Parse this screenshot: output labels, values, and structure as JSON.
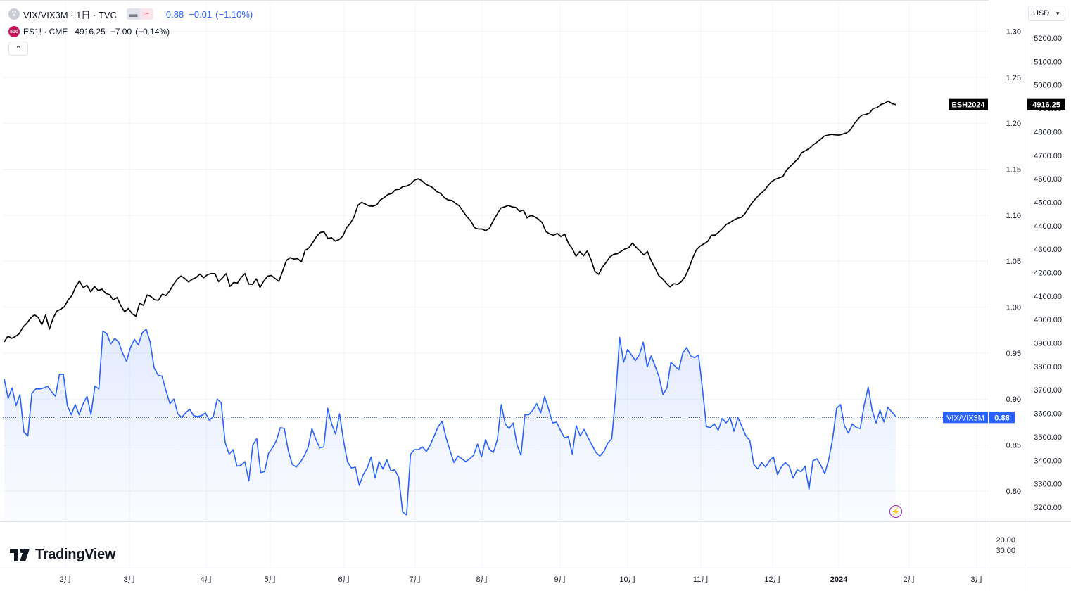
{
  "legend": {
    "main": {
      "icon": "V",
      "title": "VIX/VIX3M · 1日 · TVC",
      "last": "0.88",
      "change": "−0.01",
      "change_pct": "(−1.10%)",
      "pill_icons": [
        "minus-icon",
        "approx-icon"
      ],
      "color": "#2962ff"
    },
    "overlay": {
      "icon": "500",
      "title": "ES1! · CME",
      "last": "4916.25",
      "change": "−7.00",
      "change_pct": "(−0.14%)",
      "icon_color": "#c2185b"
    },
    "collapse_icon": "chevron-up-icon"
  },
  "currency": {
    "label": "USD",
    "icon": "chevron-down-icon"
  },
  "brand": {
    "name": "TradingView"
  },
  "badges": {
    "es_name": "ESH2024",
    "es_value": "4916.25",
    "vix_name": "VIX/VIX3M",
    "vix_value": "0.88"
  },
  "colors": {
    "vix_line": "#2962ff",
    "es_line": "#000000",
    "grid": "#f0f3fa"
  },
  "chart_data": {
    "type": "line",
    "x_ticks": [
      "2月",
      "3月",
      "4月",
      "5月",
      "6月",
      "7月",
      "8月",
      "9月",
      "10月",
      "11月",
      "12月",
      "2024",
      "2月",
      "3月"
    ],
    "series": [
      {
        "name": "VIX/VIX3M",
        "style": "area",
        "axis": "left-scale",
        "last": 0.88,
        "ylim": [
          0.767,
          1.331
        ],
        "ticks": [
          "1.30",
          "1.25",
          "1.20",
          "1.15",
          "1.10",
          "1.05",
          "1.00",
          "0.95",
          "0.90",
          "0.85",
          "0.80"
        ],
        "values": [
          0.922,
          0.901,
          0.912,
          0.893,
          0.905,
          0.864,
          0.86,
          0.906,
          0.911,
          0.911,
          0.912,
          0.914,
          0.908,
          0.903,
          0.927,
          0.927,
          0.893,
          0.883,
          0.894,
          0.883,
          0.895,
          0.903,
          0.883,
          0.914,
          0.911,
          0.974,
          0.971,
          0.96,
          0.966,
          0.962,
          0.95,
          0.941,
          0.956,
          0.965,
          0.959,
          0.972,
          0.976,
          0.962,
          0.934,
          0.926,
          0.925,
          0.909,
          0.895,
          0.9,
          0.884,
          0.88,
          0.885,
          0.889,
          0.882,
          0.881,
          0.882,
          0.885,
          0.877,
          0.881,
          0.9,
          0.896,
          0.853,
          0.84,
          0.845,
          0.827,
          0.828,
          0.832,
          0.811,
          0.85,
          0.857,
          0.82,
          0.821,
          0.841,
          0.847,
          0.855,
          0.869,
          0.868,
          0.844,
          0.829,
          0.826,
          0.831,
          0.838,
          0.847,
          0.868,
          0.856,
          0.847,
          0.848,
          0.89,
          0.873,
          0.862,
          0.884,
          0.855,
          0.832,
          0.825,
          0.826,
          0.806,
          0.818,
          0.825,
          0.837,
          0.814,
          0.832,
          0.824,
          0.834,
          0.822,
          0.823,
          0.815,
          0.777,
          0.774,
          0.84,
          0.845,
          0.845,
          0.848,
          0.843,
          0.85,
          0.86,
          0.87,
          0.876,
          0.858,
          0.844,
          0.831,
          0.838,
          0.835,
          0.832,
          0.835,
          0.839,
          0.851,
          0.837,
          0.856,
          0.845,
          0.842,
          0.856,
          0.894,
          0.873,
          0.868,
          0.874,
          0.85,
          0.839,
          0.883,
          0.883,
          0.888,
          0.895,
          0.885,
          0.903,
          0.889,
          0.874,
          0.875,
          0.866,
          0.858,
          0.859,
          0.84,
          0.871,
          0.86,
          0.867,
          0.858,
          0.85,
          0.842,
          0.838,
          0.843,
          0.852,
          0.857,
          0.904,
          0.967,
          0.94,
          0.954,
          0.948,
          0.942,
          0.948,
          0.962,
          0.935,
          0.947,
          0.936,
          0.924,
          0.905,
          0.912,
          0.94,
          0.936,
          0.932,
          0.95,
          0.956,
          0.947,
          0.945,
          0.948,
          0.911,
          0.87,
          0.869,
          0.873,
          0.866,
          0.879,
          0.874,
          0.88,
          0.865,
          0.88,
          0.87,
          0.86,
          0.855,
          0.829,
          0.824,
          0.831,
          0.826,
          0.833,
          0.837,
          0.818,
          0.826,
          0.831,
          0.827,
          0.814,
          0.823,
          0.821,
          0.827,
          0.802,
          0.833,
          0.835,
          0.828,
          0.819,
          0.834,
          0.857,
          0.89,
          0.894,
          0.871,
          0.863,
          0.873,
          0.869,
          0.868,
          0.894,
          0.913,
          0.888,
          0.874,
          0.888,
          0.875,
          0.891,
          0.886,
          0.881
        ]
      },
      {
        "name": "ESH2024",
        "style": "line",
        "axis": "right-scale",
        "last": 4916.25,
        "ylim": [
          3140,
          5350
        ],
        "ticks": [
          "5200.00",
          "5100.00",
          "5000.00",
          "4900.00",
          "4800.00",
          "4700.00",
          "4600.00",
          "4500.00",
          "4400.00",
          "4300.00",
          "4200.00",
          "4100.00",
          "4000.00",
          "3900.00",
          "3800.00",
          "3700.00",
          "3600.00",
          "3500.00",
          "3400.00",
          "3300.00",
          "3200.00"
        ],
        "values": [
          3905,
          3929,
          3920,
          3928,
          3940,
          3968,
          3984,
          4006,
          4020,
          4010,
          3978,
          4019,
          3959,
          4006,
          4036,
          4044,
          4055,
          4084,
          4102,
          4140,
          4164,
          4136,
          4146,
          4118,
          4141,
          4124,
          4130,
          4112,
          4106,
          4084,
          4094,
          4059,
          4033,
          4047,
          4025,
          4014,
          4070,
          4060,
          4105,
          4098,
          4084,
          4082,
          4108,
          4102,
          4123,
          4150,
          4172,
          4186,
          4175,
          4160,
          4172,
          4179,
          4194,
          4178,
          4191,
          4196,
          4196,
          4162,
          4178,
          4196,
          4141,
          4158,
          4156,
          4180,
          4196,
          4151,
          4150,
          4174,
          4137,
          4164,
          4185,
          4188,
          4175,
          4163,
          4206,
          4252,
          4264,
          4258,
          4260,
          4246,
          4295,
          4305,
          4328,
          4354,
          4371,
          4374,
          4346,
          4349,
          4334,
          4341,
          4355,
          4392,
          4410,
          4438,
          4487,
          4500,
          4492,
          4484,
          4483,
          4489,
          4510,
          4520,
          4533,
          4537,
          4553,
          4555,
          4567,
          4569,
          4577,
          4593,
          4600,
          4592,
          4577,
          4570,
          4561,
          4545,
          4538,
          4519,
          4510,
          4508,
          4495,
          4484,
          4460,
          4438,
          4421,
          4392,
          4386,
          4386,
          4379,
          4389,
          4422,
          4448,
          4475,
          4480,
          4486,
          4480,
          4478,
          4461,
          4467,
          4433,
          4444,
          4438,
          4428,
          4413,
          4375,
          4365,
          4359,
          4367,
          4354,
          4364,
          4324,
          4303,
          4270,
          4290,
          4272,
          4293,
          4255,
          4206,
          4193,
          4223,
          4244,
          4267,
          4278,
          4281,
          4291,
          4301,
          4306,
          4326,
          4308,
          4292,
          4276,
          4290,
          4250,
          4220,
          4187,
          4174,
          4155,
          4139,
          4153,
          4150,
          4162,
          4183,
          4218,
          4262,
          4298,
          4313,
          4323,
          4333,
          4359,
          4360,
          4373,
          4389,
          4406,
          4414,
          4425,
          4432,
          4436,
          4453,
          4479,
          4502,
          4520,
          4536,
          4549,
          4570,
          4588,
          4598,
          4604,
          4610,
          4638,
          4653,
          4670,
          4685,
          4711,
          4720,
          4729,
          4744,
          4755,
          4768,
          4782,
          4786,
          4789,
          4787,
          4786,
          4791,
          4796,
          4810,
          4836,
          4855,
          4871,
          4874,
          4880,
          4900,
          4903,
          4916,
          4922,
          4931,
          4920,
          4916
        ]
      }
    ],
    "extra_scale_ticks": [
      "20.00",
      "30.00"
    ],
    "grid": true
  }
}
